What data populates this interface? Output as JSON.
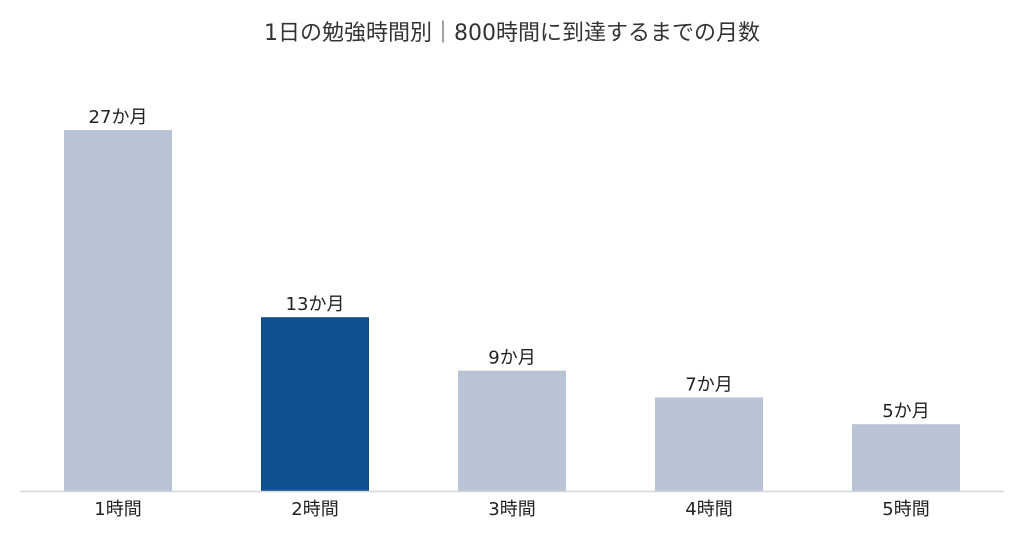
{
  "chart_data": {
    "type": "bar",
    "title": "1日の勉強時間別｜800時間に到達するまでの月数",
    "xlabel": "",
    "ylabel": "",
    "categories": [
      "1時間",
      "2時間",
      "3時間",
      "4時間",
      "5時間"
    ],
    "values": [
      27,
      13,
      9,
      7,
      5
    ],
    "data_labels": [
      "27か月",
      "13か月",
      "9か月",
      "7か月",
      "5か月"
    ],
    "value_unit": "か月",
    "ylim": [
      0,
      27
    ],
    "grid": false,
    "legend": "none",
    "highlight_index": 1,
    "colors": {
      "bar": "#b8c4d4",
      "highlight": "#0e5190",
      "axis": "#d6d6d6"
    }
  }
}
